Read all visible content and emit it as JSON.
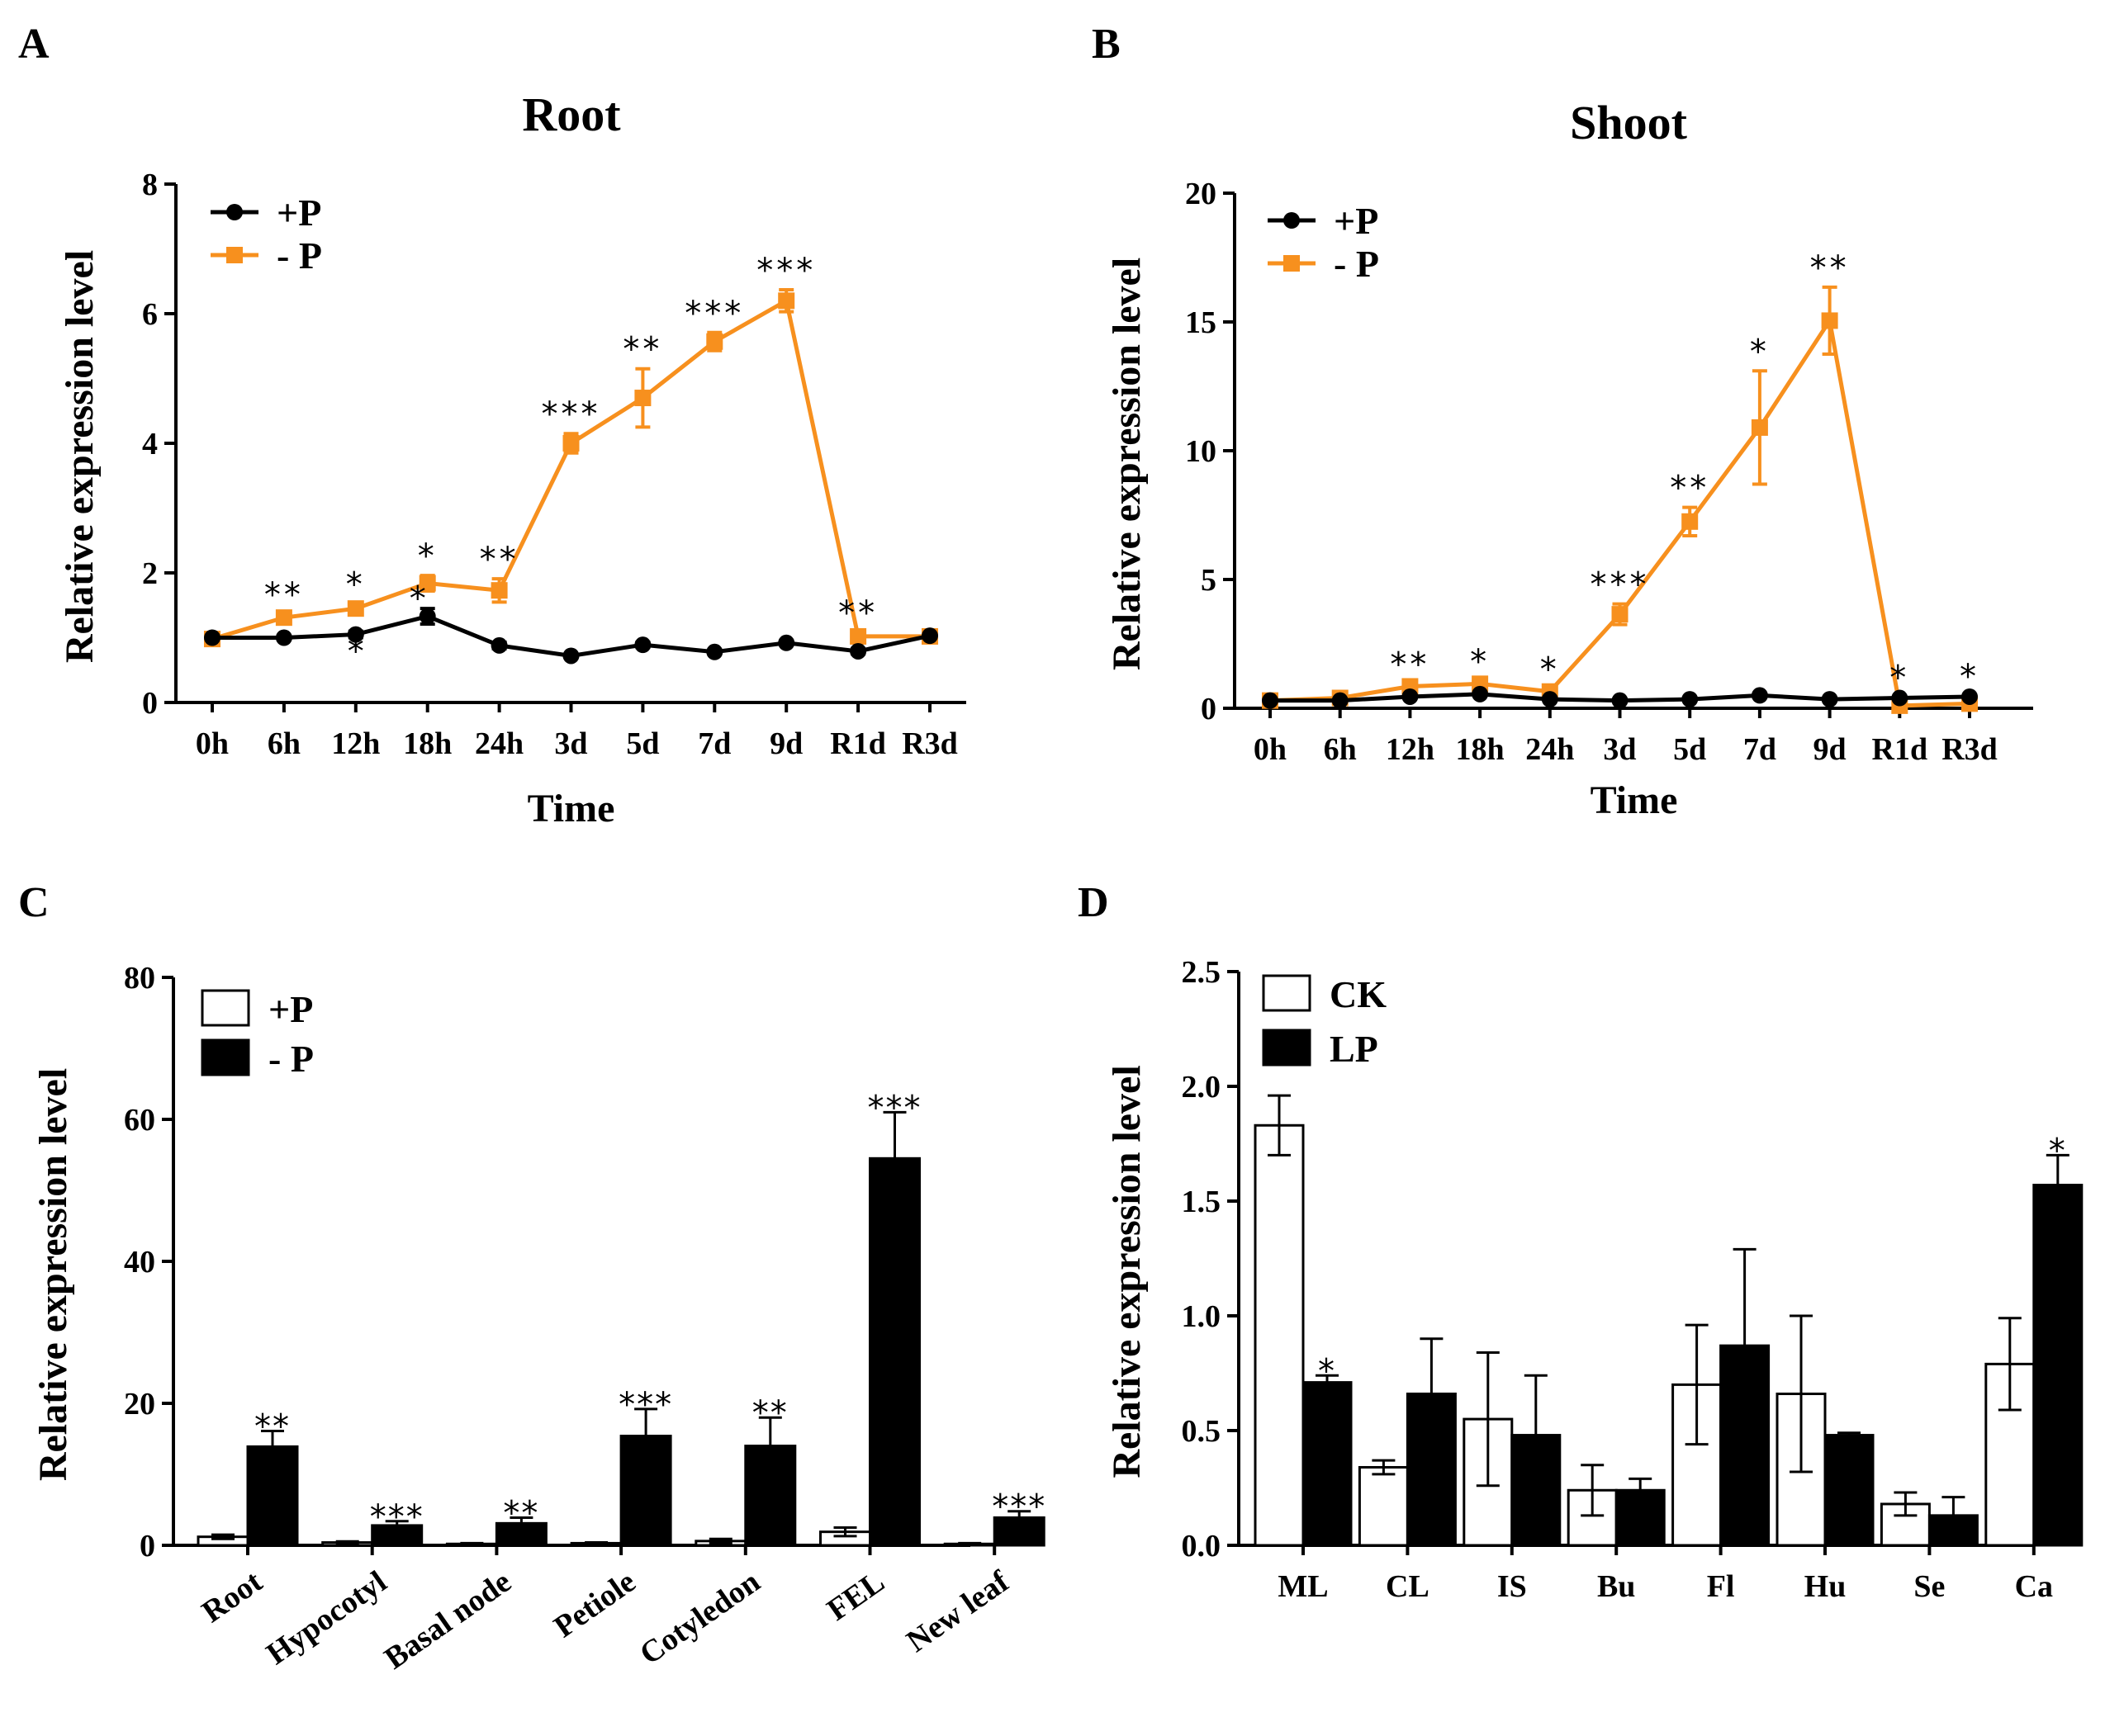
{
  "colors": {
    "plus_p": "#000000",
    "minus_p": "#F7901E",
    "open_bar": "#ffffff",
    "filled_bar": "#000000"
  },
  "chart_data": [
    {
      "id": "A",
      "panel_label": "A",
      "type": "line",
      "title": "Root",
      "xlabel": "Time",
      "ylabel": "Relative expression level",
      "categories": [
        "0h",
        "6h",
        "12h",
        "18h",
        "24h",
        "3d",
        "5d",
        "7d",
        "9d",
        "R1d",
        "R3d"
      ],
      "ylim": [
        0,
        8
      ],
      "yticks": [
        "0",
        "2",
        "4",
        "6",
        "8"
      ],
      "series": [
        {
          "name": "+P",
          "color": "#000000",
          "marker": "circle",
          "values": [
            1.0,
            1.0,
            1.05,
            1.33,
            0.88,
            0.72,
            0.89,
            0.78,
            0.92,
            0.79,
            1.03
          ],
          "errors": [
            0.02,
            0.03,
            0.05,
            0.12,
            0.05,
            0.03,
            0.04,
            0.03,
            0.03,
            0.04,
            0.03
          ]
        },
        {
          "name": "- P",
          "color": "#F7901E",
          "marker": "square",
          "values": [
            0.98,
            1.31,
            1.45,
            1.84,
            1.73,
            4.0,
            4.7,
            5.57,
            6.2,
            1.02,
            1.02
          ],
          "errors": [
            0.03,
            0.05,
            0.07,
            0.12,
            0.18,
            0.15,
            0.45,
            0.14,
            0.17,
            0.06,
            0.04
          ]
        }
      ],
      "annotations": [
        "",
        "**",
        "*",
        "*",
        "**",
        "***",
        "**",
        "***",
        "***",
        "**",
        ""
      ],
      "extra_star_label": "*"
    },
    {
      "id": "B",
      "panel_label": "B",
      "type": "line",
      "title": "Shoot",
      "xlabel": "Time",
      "ylabel": "Relative expression level",
      "categories": [
        "0h",
        "6h",
        "12h",
        "18h",
        "24h",
        "3d",
        "5d",
        "7d",
        "9d",
        "R1d",
        "R3d"
      ],
      "ylim": [
        0,
        20
      ],
      "yticks": [
        "0",
        "5",
        "10",
        "15",
        "20"
      ],
      "series": [
        {
          "name": "+P",
          "color": "#000000",
          "marker": "circle",
          "values": [
            0.3,
            0.3,
            0.45,
            0.55,
            0.35,
            0.3,
            0.35,
            0.5,
            0.35,
            0.4,
            0.45
          ],
          "errors": [
            0.02,
            0.02,
            0.05,
            0.05,
            0.03,
            0.03,
            0.03,
            0.05,
            0.03,
            0.03,
            0.03
          ]
        },
        {
          "name": "- P",
          "color": "#F7901E",
          "marker": "square",
          "values": [
            0.3,
            0.4,
            0.85,
            0.95,
            0.65,
            3.65,
            7.25,
            10.9,
            15.05,
            0.1,
            0.18
          ],
          "errors": [
            0.05,
            0.05,
            0.1,
            0.1,
            0.1,
            0.4,
            0.55,
            2.2,
            1.3,
            0.05,
            0.05
          ]
        }
      ],
      "annotations": [
        "",
        "",
        "**",
        "*",
        "*",
        "***",
        "**",
        "*",
        "**",
        "*",
        "*"
      ]
    },
    {
      "id": "C",
      "panel_label": "C",
      "type": "bar",
      "xlabel": "",
      "ylabel": "Relative expression level",
      "categories": [
        "Root",
        "Hypocotyl",
        "Basal node",
        "Petiole",
        "Cotyledon",
        "FEL",
        "New leaf"
      ],
      "ylim": [
        0,
        80
      ],
      "yticks": [
        "0",
        "20",
        "40",
        "60",
        "80"
      ],
      "series": [
        {
          "name": "+P",
          "fill": "#ffffff",
          "values": [
            1.2,
            0.4,
            0.2,
            0.3,
            0.6,
            1.9,
            0.2
          ],
          "errors": [
            0.3,
            0.15,
            0.1,
            0.1,
            0.3,
            0.6,
            0.1
          ]
        },
        {
          "name": "- P",
          "fill": "#000000",
          "values": [
            13.9,
            2.8,
            3.1,
            15.4,
            14.0,
            54.5,
            3.9
          ],
          "errors": [
            2.2,
            0.6,
            0.8,
            3.8,
            4.0,
            6.5,
            0.9
          ]
        }
      ],
      "annotations": [
        "**",
        "***",
        "**",
        "***",
        "**",
        "***",
        "***"
      ]
    },
    {
      "id": "D",
      "panel_label": "D",
      "type": "bar",
      "xlabel": "",
      "ylabel": "Relative expression level",
      "categories": [
        "ML",
        "CL",
        "IS",
        "Bu",
        "Fl",
        "Hu",
        "Se",
        "Ca"
      ],
      "ylim": [
        0,
        2.5
      ],
      "yticks": [
        "0.0",
        "0.5",
        "1.0",
        "1.5",
        "2.0",
        "2.5"
      ],
      "series": [
        {
          "name": "CK",
          "fill": "#ffffff",
          "values": [
            1.83,
            0.34,
            0.55,
            0.24,
            0.7,
            0.66,
            0.18,
            0.79
          ],
          "errors": [
            0.13,
            0.03,
            0.29,
            0.11,
            0.26,
            0.34,
            0.05,
            0.2
          ]
        },
        {
          "name": "LP",
          "fill": "#000000",
          "values": [
            0.71,
            0.66,
            0.48,
            0.24,
            0.87,
            0.48,
            0.13,
            1.57
          ],
          "errors": [
            0.03,
            0.24,
            0.26,
            0.05,
            0.42,
            0.01,
            0.08,
            0.13
          ]
        }
      ],
      "annotations": [
        "*",
        "",
        "",
        "",
        "",
        "",
        "",
        "*"
      ]
    }
  ]
}
